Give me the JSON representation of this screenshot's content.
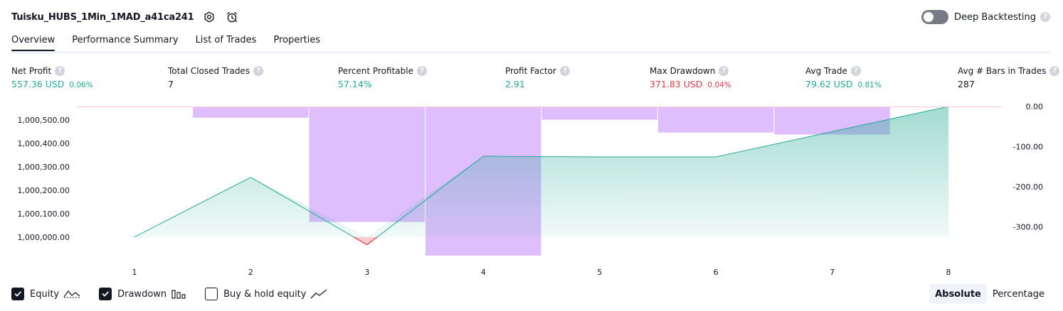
{
  "header": {
    "strategy_name": "Tuisku_HUBS_1Min_1MAD_a41ca241",
    "settings_icon": "gear-icon",
    "alert_icon": "alarm-clock-icon"
  },
  "deep_backtesting": {
    "label": "Deep Backtesting",
    "enabled": false
  },
  "tabs": [
    {
      "label": "Overview",
      "active": true
    },
    {
      "label": "Performance Summary",
      "active": false
    },
    {
      "label": "List of Trades",
      "active": false
    },
    {
      "label": "Properties",
      "active": false
    }
  ],
  "metrics": {
    "net_profit": {
      "label": "Net Profit",
      "value": "557.36 USD",
      "pct": "0.06%"
    },
    "total_closed_trades": {
      "label": "Total Closed Trades",
      "value": "7"
    },
    "percent_profitable": {
      "label": "Percent Profitable",
      "value": "57.14%"
    },
    "profit_factor": {
      "label": "Profit Factor",
      "value": "2.91"
    },
    "max_drawdown": {
      "label": "Max Drawdown",
      "value": "371.83 USD",
      "pct": "0.04%"
    },
    "avg_trade": {
      "label": "Avg Trade",
      "value": "79.62 USD",
      "pct": "0.81%"
    },
    "avg_bars": {
      "label": "Avg # Bars in Trades",
      "value": "287"
    }
  },
  "chart_data": {
    "type": "line",
    "x": [
      1,
      2,
      3,
      4,
      5,
      6,
      7,
      8
    ],
    "left_axis": {
      "ticks": [
        "1,000,500.00",
        "1,000,400.00",
        "1,000,300.00",
        "1,000,200.00",
        "1,000,100.00",
        "1,000,000.00"
      ],
      "tick_values": [
        1000500,
        1000400,
        1000300,
        1000200,
        1000100,
        1000000
      ],
      "ylim": [
        999960,
        1000557.36
      ]
    },
    "right_axis": {
      "ticks": [
        "0.00",
        "-100.00",
        "-200.00",
        "-300.00"
      ],
      "tick_values": [
        0,
        -100,
        -200,
        -300
      ],
      "ylim": [
        -372,
        0
      ]
    },
    "series": [
      {
        "name": "Equity",
        "type": "area",
        "axis": "left",
        "values": [
          1000000,
          1000255,
          999967,
          1000345,
          1000342,
          1000342,
          1000450,
          1000557.36
        ]
      },
      {
        "name": "Drawdown",
        "type": "bar",
        "axis": "right",
        "bars": [
          {
            "x": 2,
            "value": -28
          },
          {
            "x": 3,
            "value": -288
          },
          {
            "x": 4,
            "value": -371.83
          },
          {
            "x": 5,
            "value": -33
          },
          {
            "x": 6,
            "value": -65
          },
          {
            "x": 7,
            "value": -70
          }
        ]
      }
    ],
    "colors": {
      "equity_line": "#22ab94",
      "equity_fill": "#22ab94",
      "below_start": "#f23645",
      "drawdown": "#c993fc"
    },
    "grid": false
  },
  "legend": {
    "equity": {
      "label": "Equity",
      "checked": true
    },
    "drawdown": {
      "label": "Drawdown",
      "checked": true
    },
    "buy_hold": {
      "label": "Buy & hold equity",
      "checked": false
    }
  },
  "modes": {
    "absolute": "Absolute",
    "percentage": "Percentage",
    "active": "absolute"
  }
}
